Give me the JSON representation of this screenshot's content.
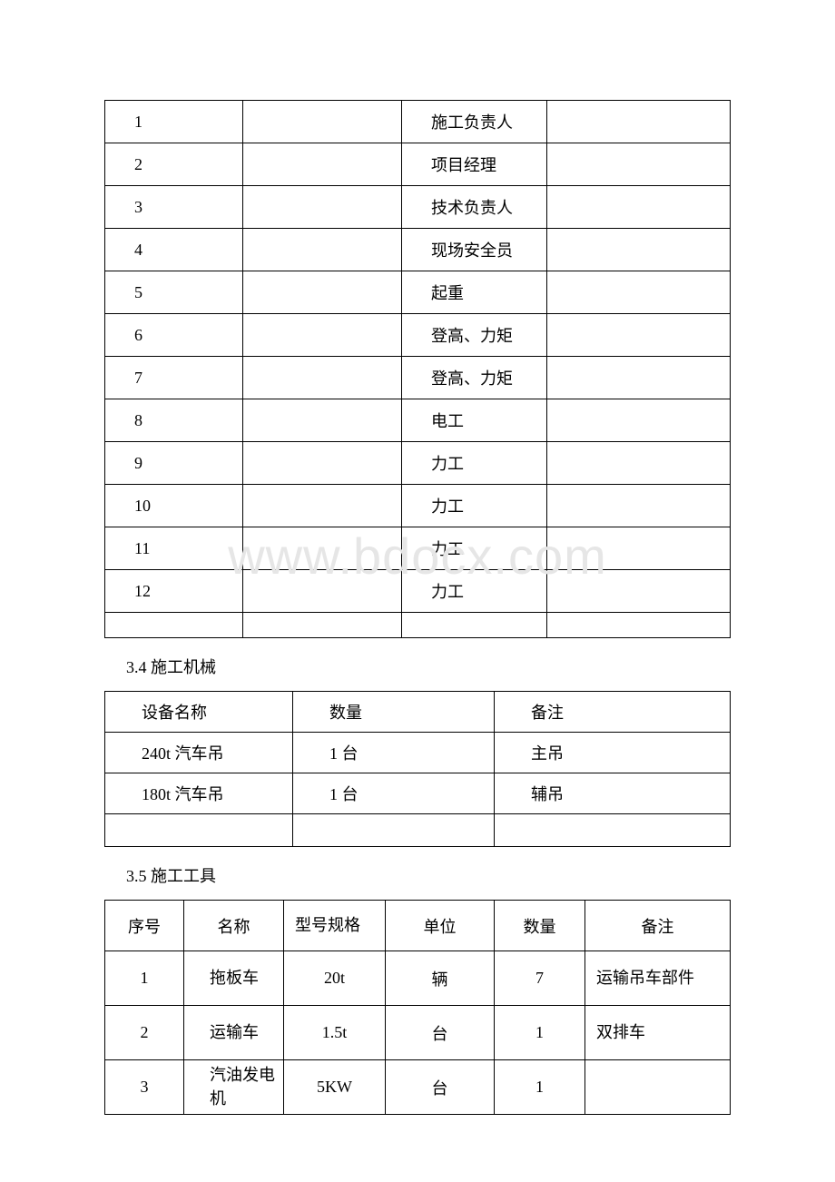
{
  "watermark_text": "www.bdocx.com",
  "table1": {
    "rows": [
      {
        "num": "1",
        "name": "",
        "role": "施工负责人",
        "remark": ""
      },
      {
        "num": "2",
        "name": "",
        "role": "项目经理",
        "remark": ""
      },
      {
        "num": "3",
        "name": "",
        "role": "技术负责人",
        "remark": ""
      },
      {
        "num": "4",
        "name": "",
        "role": "现场安全员",
        "remark": ""
      },
      {
        "num": "5",
        "name": "",
        "role": "起重",
        "remark": ""
      },
      {
        "num": "6",
        "name": "",
        "role": "登高、力矩",
        "remark": ""
      },
      {
        "num": "7",
        "name": "",
        "role": "登高、力矩",
        "remark": ""
      },
      {
        "num": "8",
        "name": "",
        "role": "电工",
        "remark": ""
      },
      {
        "num": "9",
        "name": "",
        "role": "力工",
        "remark": ""
      },
      {
        "num": "10",
        "name": "",
        "role": "力工",
        "remark": ""
      },
      {
        "num": "11",
        "name": "",
        "role": "力工",
        "remark": ""
      },
      {
        "num": "12",
        "name": "",
        "role": "力工",
        "remark": ""
      }
    ]
  },
  "section34_heading": "3.4 施工机械",
  "table2": {
    "headers": {
      "name": "设备名称",
      "qty": "数量",
      "remark": "备注"
    },
    "rows": [
      {
        "name": "240t 汽车吊",
        "qty": "1 台",
        "remark": "主吊"
      },
      {
        "name": "180t 汽车吊",
        "qty": "1 台",
        "remark": "辅吊"
      }
    ]
  },
  "section35_heading": "3.5 施工工具",
  "table3": {
    "headers": {
      "num": "序号",
      "name": "名称",
      "spec": "型号规格",
      "unit": "单位",
      "qty": "数量",
      "remark": "备注"
    },
    "rows": [
      {
        "num": "1",
        "name": "拖板车",
        "spec": "20t",
        "unit": "辆",
        "qty": "7",
        "remark": "运输吊车部件"
      },
      {
        "num": "2",
        "name": "运输车",
        "spec": "1.5t",
        "unit": "台",
        "qty": "1",
        "remark": "双排车"
      },
      {
        "num": "3",
        "name": "汽油发电机",
        "spec": "5KW",
        "unit": "台",
        "qty": "1",
        "remark": ""
      }
    ]
  }
}
